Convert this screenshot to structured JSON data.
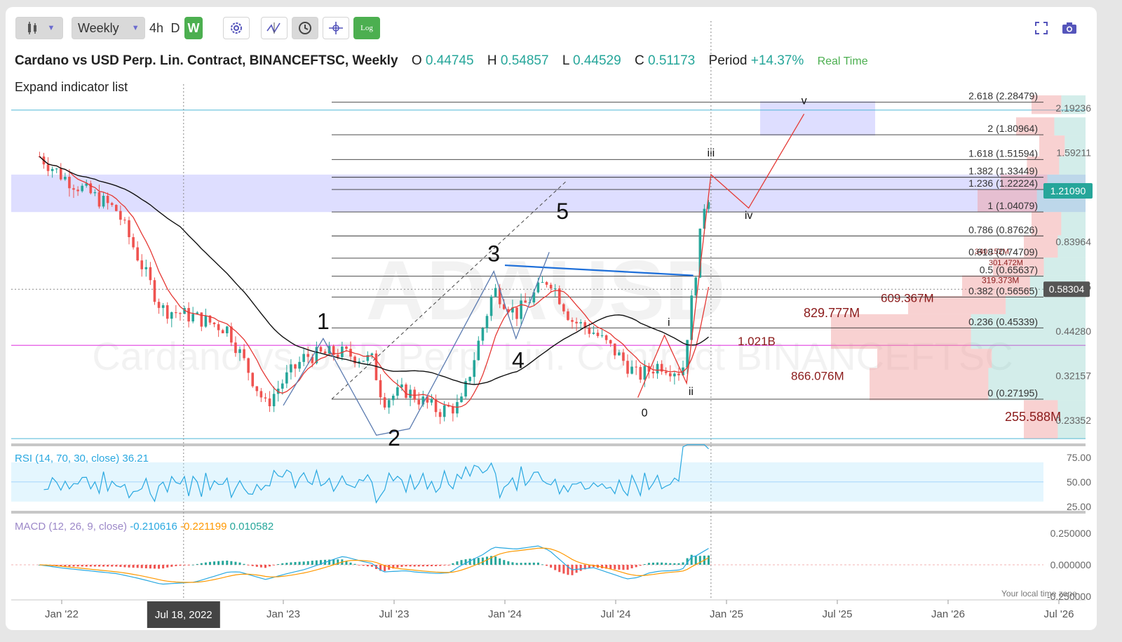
{
  "toolbar": {
    "chart_type_icon": "candlestick-icon",
    "timeframe": "Weekly",
    "intervals": [
      "4h",
      "D",
      "W"
    ],
    "active_interval": "W",
    "log_label": "Log"
  },
  "legend": {
    "title": "Cardano vs USD Perp. Lin. Contract, BINANCEFTSC, Weekly",
    "open_label": "O",
    "open": "0.44745",
    "high_label": "H",
    "high": "0.54857",
    "low_label": "L",
    "low": "0.44529",
    "close_label": "C",
    "close": "0.51173",
    "period_label": "Period",
    "period": "+14.37%",
    "realtime": "Real Time",
    "expand": "Expand indicator list"
  },
  "watermark": {
    "symbol": "ADAUSD",
    "name": "Cardano vs USD Perp. Lin. Contract BINANCEFTSC"
  },
  "chart_data": {
    "type": "candlestick",
    "symbol": "ADAUSD",
    "x_ticks": [
      "Jan '22",
      "Jan '23",
      "Jul '23",
      "Jan '24",
      "Jul '24",
      "Jan '25",
      "Jul '25",
      "Jan '26",
      "Jul '26"
    ],
    "crosshair_date": "Jul 18, 2022",
    "price_axis": [
      "2.19236",
      "1.59211",
      "0.83964",
      "0.60975",
      "0.44280",
      "0.32157",
      "0.23352"
    ],
    "last_price": "1.21090",
    "crosshair_price": "0.58304",
    "fib_levels": [
      {
        "ratio": "2.618",
        "price": "2.28479"
      },
      {
        "ratio": "2",
        "price": "1.80964"
      },
      {
        "ratio": "1.618",
        "price": "1.51594"
      },
      {
        "ratio": "1.382",
        "price": "1.33449"
      },
      {
        "ratio": "1.236",
        "price": "1.22224"
      },
      {
        "ratio": "1",
        "price": "1.04079"
      },
      {
        "ratio": "0.786",
        "price": "0.87626"
      },
      {
        "ratio": "0.618",
        "price": "0.74709"
      },
      {
        "ratio": "0.5",
        "price": "0.65637"
      },
      {
        "ratio": "0.382",
        "price": "0.56565"
      },
      {
        "ratio": "0.236",
        "price": "0.45339"
      },
      {
        "ratio": "0",
        "price": "0.27195"
      }
    ],
    "volume_profile": [
      "609.367M",
      "829.777M",
      "1.021B",
      "866.076M",
      "255.588M",
      "340.152M",
      "301.472M",
      "319.373M"
    ],
    "wave_labels": [
      "1",
      "2",
      "3",
      "4",
      "5",
      "0",
      "i",
      "ii",
      "iii",
      "iv",
      "v"
    ],
    "rsi": {
      "label": "RSI (14, 70, 30, close)",
      "value": "36.21",
      "axis": [
        "75.00",
        "50.00",
        "25.00"
      ]
    },
    "macd": {
      "label": "MACD (12, 26, 9, close)",
      "macd": "-0.210616",
      "signal": "-0.221199",
      "hist": "0.010582",
      "axis": [
        "0.250000",
        "0.000000",
        "-0.250000"
      ]
    },
    "timezone_note": "Your local time zone"
  },
  "colors": {
    "up": "#26a69a",
    "down": "#ef5350",
    "accent": "#4caf50",
    "fib": "#333333",
    "zone": "#c8c8ff"
  }
}
